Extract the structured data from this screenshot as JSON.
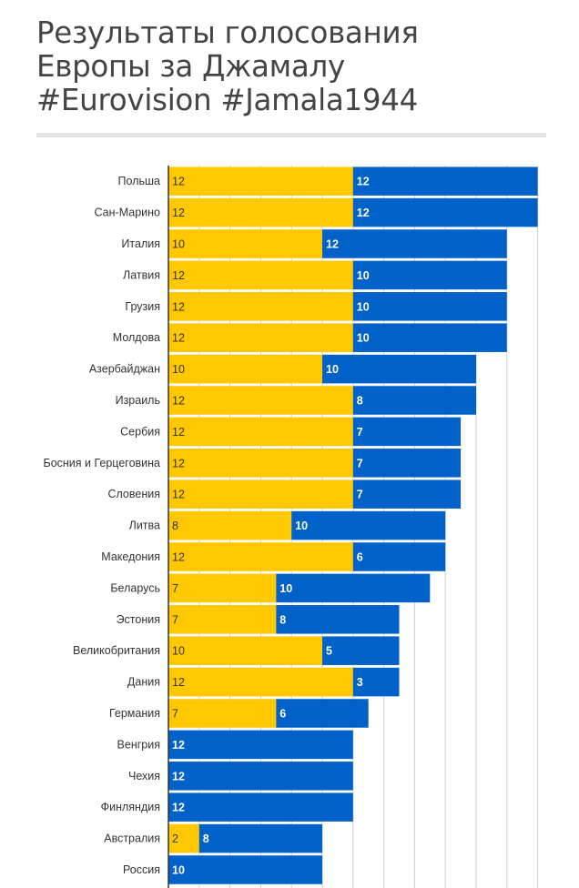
{
  "title_lines": [
    "Результаты голосования",
    "Европы за Джамалу",
    "#Eurovision #Jamala1944"
  ],
  "colors": {
    "series1": "#ffc800",
    "series2": "#0061c8",
    "label1": "#333333",
    "label2": "#ffffff",
    "grid": "#d0d0d0",
    "axis": "#333333",
    "title": "#444444",
    "rule": "#e3e3e3"
  },
  "chart_data": {
    "type": "bar",
    "orientation": "horizontal",
    "stacked": true,
    "title": "Результаты голосования Европы за Джамалу #Eurovision #Jamala1944",
    "xlim": [
      0,
      24
    ],
    "x_gridlines_every": 2,
    "categories": [
      "Польша",
      "Сан-Марино",
      "Италия",
      "Латвия",
      "Грузия",
      "Молдова",
      "Азербайджан",
      "Израиль",
      "Сербия",
      "Босния и Герцеговина",
      "Словения",
      "Литва",
      "Македония",
      "Беларусь",
      "Эстония",
      "Великобритания",
      "Дания",
      "Германия",
      "Венгрия",
      "Чехия",
      "Финляндия",
      "Австралия",
      "Россия"
    ],
    "series": [
      {
        "values": [
          12,
          12,
          10,
          12,
          12,
          12,
          10,
          12,
          12,
          12,
          12,
          8,
          12,
          7,
          7,
          10,
          12,
          7,
          0,
          0,
          0,
          2,
          0
        ]
      },
      {
        "values": [
          12,
          12,
          12,
          10,
          10,
          10,
          10,
          8,
          7,
          7,
          7,
          10,
          6,
          10,
          8,
          5,
          3,
          6,
          12,
          12,
          12,
          8,
          10
        ]
      }
    ]
  }
}
